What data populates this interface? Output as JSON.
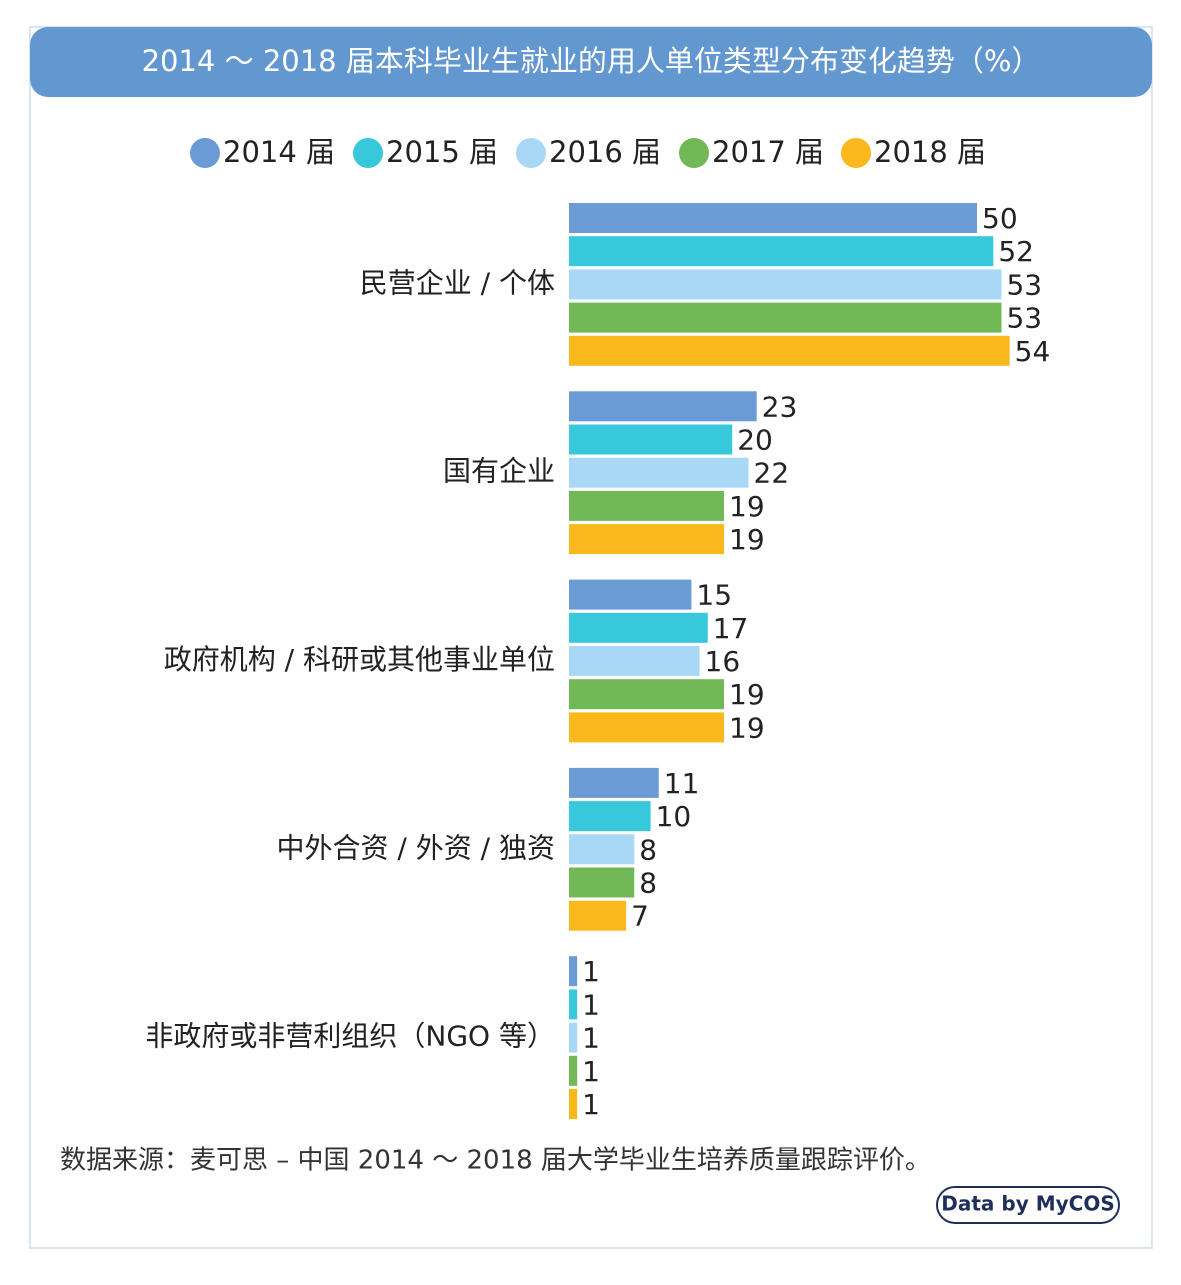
{
  "chart_data": {
    "type": "hbar",
    "title": "2014 ～ 2018 届本科毕业生就业的用人单位类型分布变化趋势（%）",
    "categories": [
      "民营企业 / 个体",
      "国有企业",
      "政府机构 / 科研或其他事业单位",
      "中外合资 / 外资 / 独资",
      "非政府或非营利组织（NGO 等）"
    ],
    "series": [
      {
        "name": "2014 届",
        "color": "#6a9bd4",
        "values": [
          50,
          23,
          15,
          11,
          1
        ]
      },
      {
        "name": "2015 届",
        "color": "#38c8dc",
        "values": [
          52,
          20,
          17,
          10,
          1
        ]
      },
      {
        "name": "2016 届",
        "color": "#a8d8f5",
        "values": [
          53,
          22,
          16,
          8,
          1
        ]
      },
      {
        "name": "2017 届",
        "color": "#73b856",
        "values": [
          53,
          19,
          19,
          8,
          1
        ]
      },
      {
        "name": "2018 届",
        "color": "#fbb81c",
        "values": [
          54,
          19,
          19,
          7,
          1
        ]
      }
    ],
    "legend": "top",
    "source": "数据来源：麦可思 – 中国 2014 ～ 2018 届大学毕业生培养质量跟踪评价。",
    "badge": "Data by MyCOS"
  }
}
